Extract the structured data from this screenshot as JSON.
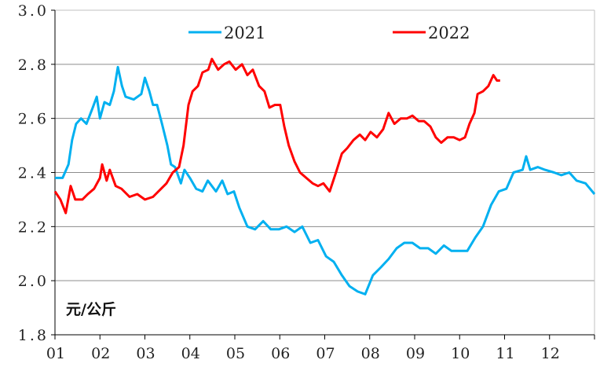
{
  "chart_data": {
    "type": "line",
    "title": "",
    "xlabel": "",
    "ylabel": "元/公斤",
    "ylim": [
      1.8,
      3.0
    ],
    "xlim": [
      0,
      12
    ],
    "yticks": [
      "1.8",
      "2.0",
      "2.2",
      "2.4",
      "2.6",
      "2.8",
      "3.0"
    ],
    "ytick_values": [
      1.8,
      2.0,
      2.2,
      2.4,
      2.6,
      2.8,
      3.0
    ],
    "xticks": [
      "01",
      "02",
      "03",
      "04",
      "05",
      "06",
      "07",
      "08",
      "09",
      "10",
      "11",
      "12"
    ],
    "grid": "horizontal",
    "legend_placement": "top",
    "series": [
      {
        "name": "2021",
        "color": "#00b0f0",
        "x": [
          0,
          0.17,
          0.3,
          0.38,
          0.47,
          0.58,
          0.7,
          0.84,
          0.93,
          1.0,
          1.1,
          1.22,
          1.31,
          1.4,
          1.49,
          1.57,
          1.75,
          1.92,
          2.0,
          2.1,
          2.18,
          2.27,
          2.38,
          2.5,
          2.58,
          2.67,
          2.8,
          2.88,
          3.0,
          3.14,
          3.28,
          3.4,
          3.58,
          3.72,
          3.84,
          3.98,
          4.1,
          4.28,
          4.45,
          4.63,
          4.8,
          4.98,
          5.15,
          5.33,
          5.5,
          5.68,
          5.85,
          6.03,
          6.2,
          6.38,
          6.55,
          6.73,
          6.9,
          7.07,
          7.25,
          7.42,
          7.6,
          7.77,
          7.95,
          8.12,
          8.3,
          8.47,
          8.65,
          8.82,
          9.0,
          9.17,
          9.35,
          9.52,
          9.7,
          9.87,
          10.04,
          10.2,
          10.4,
          10.48,
          10.57,
          10.74,
          10.9,
          11.1,
          11.26,
          11.44,
          11.6,
          11.8,
          12.0
        ],
        "y": [
          2.38,
          2.38,
          2.43,
          2.52,
          2.58,
          2.6,
          2.58,
          2.64,
          2.68,
          2.6,
          2.66,
          2.65,
          2.7,
          2.79,
          2.72,
          2.68,
          2.67,
          2.69,
          2.75,
          2.7,
          2.65,
          2.65,
          2.58,
          2.5,
          2.43,
          2.42,
          2.36,
          2.41,
          2.38,
          2.34,
          2.33,
          2.37,
          2.33,
          2.37,
          2.32,
          2.33,
          2.27,
          2.2,
          2.19,
          2.22,
          2.19,
          2.19,
          2.2,
          2.18,
          2.2,
          2.14,
          2.15,
          2.09,
          2.07,
          2.02,
          1.98,
          1.96,
          1.95,
          2.02,
          2.05,
          2.08,
          2.12,
          2.14,
          2.14,
          2.12,
          2.12,
          2.1,
          2.13,
          2.11,
          2.11,
          2.11,
          2.16,
          2.2,
          2.28,
          2.33,
          2.34,
          2.4,
          2.41,
          2.46,
          2.41,
          2.42,
          2.41,
          2.4,
          2.39,
          2.4,
          2.37,
          2.36,
          2.32
        ]
      },
      {
        "name": "2022",
        "color": "#ff0000",
        "x": [
          0,
          0.12,
          0.24,
          0.35,
          0.45,
          0.61,
          0.73,
          0.87,
          1.0,
          1.05,
          1.15,
          1.22,
          1.35,
          1.48,
          1.66,
          1.83,
          2.0,
          2.18,
          2.36,
          2.48,
          2.62,
          2.76,
          2.86,
          2.97,
          3.06,
          3.18,
          3.28,
          3.41,
          3.49,
          3.63,
          3.76,
          3.88,
          4.02,
          4.16,
          4.28,
          4.4,
          4.54,
          4.66,
          4.77,
          4.89,
          5.01,
          5.1,
          5.2,
          5.33,
          5.45,
          5.59,
          5.73,
          5.85,
          5.97,
          6.11,
          6.25,
          6.38,
          6.5,
          6.64,
          6.78,
          6.9,
          7.02,
          7.16,
          7.3,
          7.42,
          7.55,
          7.69,
          7.83,
          7.95,
          8.09,
          8.21,
          8.35,
          8.47,
          8.59,
          8.73,
          8.87,
          9.0,
          9.12,
          9.22,
          9.33,
          9.4,
          9.52,
          9.64,
          9.75,
          9.83,
          9.9
        ],
        "y": [
          2.33,
          2.3,
          2.25,
          2.35,
          2.3,
          2.3,
          2.32,
          2.34,
          2.38,
          2.43,
          2.37,
          2.41,
          2.35,
          2.34,
          2.31,
          2.32,
          2.3,
          2.31,
          2.34,
          2.36,
          2.4,
          2.42,
          2.5,
          2.65,
          2.7,
          2.72,
          2.77,
          2.78,
          2.82,
          2.78,
          2.8,
          2.81,
          2.78,
          2.8,
          2.76,
          2.78,
          2.72,
          2.7,
          2.64,
          2.65,
          2.65,
          2.57,
          2.5,
          2.44,
          2.4,
          2.38,
          2.36,
          2.35,
          2.36,
          2.33,
          2.4,
          2.47,
          2.49,
          2.52,
          2.54,
          2.52,
          2.55,
          2.53,
          2.56,
          2.62,
          2.58,
          2.6,
          2.6,
          2.61,
          2.59,
          2.59,
          2.57,
          2.53,
          2.51,
          2.53,
          2.53,
          2.52,
          2.53,
          2.58,
          2.62,
          2.69,
          2.7,
          2.72,
          2.76,
          2.74,
          2.74
        ]
      }
    ]
  }
}
